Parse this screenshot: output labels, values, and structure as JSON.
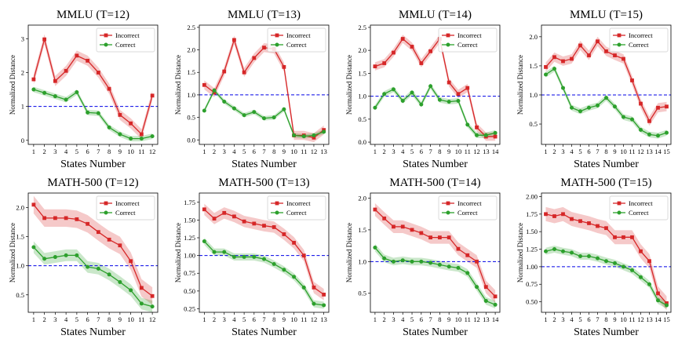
{
  "chart_data": [
    {
      "type": "line",
      "title": "MMLU (T=12)",
      "xlabel": "States Number",
      "ylabel": "Normalized Distance",
      "x": [
        1,
        2,
        3,
        4,
        5,
        6,
        7,
        8,
        9,
        10,
        11,
        12
      ],
      "ylim": [
        -0.12,
        3.4
      ],
      "yticks": [
        "0",
        "1",
        "2",
        "3"
      ],
      "reference_line": 1.0,
      "series": [
        {
          "name": "Incorrect",
          "color": "#d62728",
          "values": [
            1.8,
            2.98,
            1.75,
            2.05,
            2.5,
            2.35,
            2.0,
            1.52,
            0.75,
            0.5,
            0.18,
            1.32
          ],
          "band": 0.15
        },
        {
          "name": "Correct",
          "color": "#2ca02c",
          "values": [
            1.5,
            1.4,
            1.3,
            1.2,
            1.42,
            0.82,
            0.8,
            0.38,
            0.18,
            0.05,
            0.05,
            0.12
          ],
          "band": 0.08
        }
      ]
    },
    {
      "type": "line",
      "title": "MMLU (T=13)",
      "xlabel": "States Number",
      "ylabel": "Normalized Distance",
      "x": [
        1,
        2,
        3,
        4,
        5,
        6,
        7,
        8,
        9,
        10,
        11,
        12,
        13
      ],
      "ylim": [
        -0.1,
        2.55
      ],
      "yticks": [
        "0.0",
        "0.5",
        "1.0",
        "1.5",
        "2.0",
        "2.5"
      ],
      "reference_line": 1.0,
      "series": [
        {
          "name": "Incorrect",
          "color": "#d62728",
          "values": [
            1.22,
            1.05,
            1.52,
            2.22,
            1.5,
            1.82,
            2.05,
            2.02,
            1.62,
            0.1,
            0.1,
            0.05,
            0.22
          ],
          "band": 0.1
        },
        {
          "name": "Correct",
          "color": "#2ca02c",
          "values": [
            0.65,
            1.1,
            0.85,
            0.7,
            0.55,
            0.62,
            0.48,
            0.5,
            0.68,
            0.1,
            0.08,
            0.1,
            0.18
          ],
          "band": 0.05
        }
      ]
    },
    {
      "type": "line",
      "title": "MMLU (T=14)",
      "xlabel": "States Number",
      "ylabel": "Normalized Distance",
      "x": [
        1,
        2,
        3,
        4,
        5,
        6,
        7,
        8,
        9,
        10,
        11,
        12,
        13,
        14
      ],
      "ylim": [
        -0.05,
        2.55
      ],
      "yticks": [
        "0.0",
        "0.5",
        "1.0",
        "1.5",
        "2.0",
        "2.5"
      ],
      "reference_line": 1.0,
      "series": [
        {
          "name": "Incorrect",
          "color": "#d62728",
          "values": [
            1.65,
            1.72,
            1.95,
            2.25,
            2.08,
            1.72,
            1.98,
            2.25,
            1.3,
            1.05,
            1.18,
            0.32,
            0.12,
            0.12
          ],
          "band": 0.09
        },
        {
          "name": "Correct",
          "color": "#2ca02c",
          "values": [
            0.75,
            1.05,
            1.15,
            0.9,
            1.08,
            0.82,
            1.22,
            0.92,
            0.88,
            0.9,
            0.38,
            0.15,
            0.15,
            0.2
          ],
          "band": 0.06
        }
      ]
    },
    {
      "type": "line",
      "title": "MMLU (T=15)",
      "xlabel": "States Number",
      "ylabel": "Normalized Distance",
      "x": [
        1,
        2,
        3,
        4,
        5,
        6,
        7,
        8,
        9,
        10,
        11,
        12,
        13,
        14,
        15
      ],
      "ylim": [
        0.15,
        2.2
      ],
      "yticks": [
        "0.5",
        "1.0",
        "1.5",
        "2.0"
      ],
      "reference_line": 1.0,
      "series": [
        {
          "name": "Incorrect",
          "color": "#d62728",
          "values": [
            1.48,
            1.65,
            1.58,
            1.62,
            1.85,
            1.68,
            1.92,
            1.75,
            1.68,
            1.62,
            1.25,
            0.85,
            0.55,
            0.78,
            0.8
          ],
          "band": 0.08
        },
        {
          "name": "Correct",
          "color": "#2ca02c",
          "values": [
            1.35,
            1.45,
            1.12,
            0.78,
            0.72,
            0.78,
            0.82,
            0.95,
            0.8,
            0.62,
            0.58,
            0.4,
            0.32,
            0.3,
            0.35
          ],
          "band": 0.05
        }
      ]
    },
    {
      "type": "line",
      "title": "MATH-500 (T=12)",
      "xlabel": "States Number",
      "ylabel": "Normalized Distance",
      "x": [
        1,
        2,
        3,
        4,
        5,
        6,
        7,
        8,
        9,
        10,
        11,
        12
      ],
      "ylim": [
        0.2,
        2.25
      ],
      "yticks": [
        "0.5",
        "1.0",
        "1.5",
        "2.0"
      ],
      "reference_line": 1.0,
      "series": [
        {
          "name": "Incorrect",
          "color": "#d62728",
          "values": [
            2.05,
            1.82,
            1.82,
            1.82,
            1.8,
            1.72,
            1.58,
            1.45,
            1.35,
            1.08,
            0.62,
            0.48
          ],
          "band": 0.15
        },
        {
          "name": "Correct",
          "color": "#2ca02c",
          "values": [
            1.32,
            1.12,
            1.15,
            1.18,
            1.18,
            0.98,
            0.95,
            0.85,
            0.72,
            0.58,
            0.35,
            0.3
          ],
          "band": 0.1
        }
      ]
    },
    {
      "type": "line",
      "title": "MATH-500 (T=13)",
      "xlabel": "States Number",
      "ylabel": "Normalized Distance",
      "x": [
        1,
        2,
        3,
        4,
        5,
        6,
        7,
        8,
        9,
        10,
        11,
        12,
        13
      ],
      "ylim": [
        0.2,
        1.88
      ],
      "yticks": [
        "0.25",
        "0.50",
        "0.75",
        "1.00",
        "1.25",
        "1.50",
        "1.75"
      ],
      "reference_line": 1.0,
      "series": [
        {
          "name": "Incorrect",
          "color": "#d62728",
          "values": [
            1.65,
            1.52,
            1.6,
            1.55,
            1.48,
            1.45,
            1.42,
            1.4,
            1.3,
            1.18,
            1.0,
            0.55,
            0.45
          ],
          "band": 0.08
        },
        {
          "name": "Correct",
          "color": "#2ca02c",
          "values": [
            1.2,
            1.05,
            1.05,
            0.98,
            0.98,
            0.98,
            0.95,
            0.88,
            0.8,
            0.7,
            0.55,
            0.32,
            0.3
          ],
          "band": 0.05
        }
      ]
    },
    {
      "type": "line",
      "title": "MATH-500 (T=14)",
      "xlabel": "States Number",
      "ylabel": "Normalized Distance",
      "x": [
        1,
        2,
        3,
        4,
        5,
        6,
        7,
        8,
        9,
        10,
        11,
        12,
        13,
        14
      ],
      "ylim": [
        0.2,
        2.08
      ],
      "yticks": [
        "0.5",
        "1.0",
        "1.5",
        "2.0"
      ],
      "reference_line": 1.0,
      "series": [
        {
          "name": "Incorrect",
          "color": "#d62728",
          "values": [
            1.82,
            1.68,
            1.55,
            1.55,
            1.5,
            1.45,
            1.38,
            1.38,
            1.38,
            1.2,
            1.1,
            1.0,
            0.6,
            0.45
          ],
          "band": 0.1
        },
        {
          "name": "Correct",
          "color": "#2ca02c",
          "values": [
            1.22,
            1.05,
            1.0,
            1.02,
            1.0,
            1.0,
            0.98,
            0.95,
            0.92,
            0.9,
            0.82,
            0.6,
            0.38,
            0.32
          ],
          "band": 0.06
        }
      ]
    },
    {
      "type": "line",
      "title": "MATH-500 (T=15)",
      "xlabel": "States Number",
      "ylabel": "Normalized Distance",
      "x": [
        1,
        2,
        3,
        4,
        5,
        6,
        7,
        8,
        9,
        10,
        11,
        12,
        13,
        14,
        15
      ],
      "ylim": [
        0.35,
        2.05
      ],
      "yticks": [
        "0.50",
        "0.75",
        "1.00",
        "1.25",
        "1.50",
        "1.75",
        "2.00"
      ],
      "reference_line": 1.0,
      "series": [
        {
          "name": "Incorrect",
          "color": "#d62728",
          "values": [
            1.75,
            1.72,
            1.75,
            1.68,
            1.65,
            1.62,
            1.58,
            1.55,
            1.42,
            1.42,
            1.42,
            1.22,
            1.08,
            0.62,
            0.48
          ],
          "band": 0.1
        },
        {
          "name": "Correct",
          "color": "#2ca02c",
          "values": [
            1.22,
            1.25,
            1.22,
            1.2,
            1.15,
            1.15,
            1.12,
            1.08,
            1.05,
            1.0,
            0.95,
            0.85,
            0.75,
            0.52,
            0.45
          ],
          "band": 0.05
        }
      ]
    }
  ]
}
